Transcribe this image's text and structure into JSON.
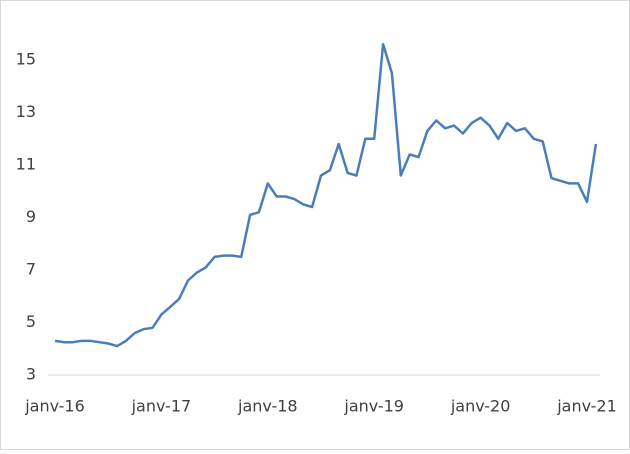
{
  "chart_data": {
    "type": "line",
    "x": [
      "2016-01",
      "2016-02",
      "2016-03",
      "2016-04",
      "2016-05",
      "2016-06",
      "2016-07",
      "2016-08",
      "2016-09",
      "2016-10",
      "2016-11",
      "2016-12",
      "2017-01",
      "2017-02",
      "2017-03",
      "2017-04",
      "2017-05",
      "2017-06",
      "2017-07",
      "2017-08",
      "2017-09",
      "2017-10",
      "2017-11",
      "2017-12",
      "2018-01",
      "2018-02",
      "2018-03",
      "2018-04",
      "2018-05",
      "2018-06",
      "2018-07",
      "2018-08",
      "2018-09",
      "2018-10",
      "2018-11",
      "2018-12",
      "2019-01",
      "2019-02",
      "2019-03",
      "2019-04",
      "2019-05",
      "2019-06",
      "2019-07",
      "2019-08",
      "2019-09",
      "2019-10",
      "2019-11",
      "2019-12",
      "2020-01",
      "2020-02",
      "2020-03",
      "2020-04",
      "2020-05",
      "2020-06",
      "2020-07",
      "2020-08",
      "2020-09",
      "2020-10",
      "2020-11",
      "2020-12",
      "2021-01",
      "2021-02"
    ],
    "series": [
      {
        "color": "#4a7ebb",
        "values": [
          4.3,
          4.25,
          4.25,
          4.3,
          4.3,
          4.25,
          4.2,
          4.1,
          4.3,
          4.6,
          4.75,
          4.8,
          5.3,
          5.6,
          5.9,
          6.6,
          6.9,
          7.1,
          7.5,
          7.55,
          7.55,
          7.5,
          9.1,
          9.2,
          10.3,
          9.8,
          9.8,
          9.7,
          9.5,
          9.4,
          10.6,
          10.8,
          11.8,
          10.7,
          10.6,
          12.0,
          12.0,
          15.6,
          14.5,
          10.6,
          11.4,
          11.3,
          12.3,
          12.7,
          12.4,
          12.5,
          12.2,
          12.6,
          12.8,
          12.5,
          12.0,
          12.6,
          12.3,
          12.4,
          12.0,
          11.9,
          10.5,
          10.4,
          10.3,
          10.3,
          9.6,
          11.8
        ]
      }
    ],
    "ylim": [
      3,
      16
    ],
    "yticks": [
      3,
      5,
      7,
      9,
      11,
      13,
      15
    ],
    "xticks": [
      {
        "value": "2016-01",
        "label": "janv-16"
      },
      {
        "value": "2017-01",
        "label": "janv-17"
      },
      {
        "value": "2018-01",
        "label": "janv-18"
      },
      {
        "value": "2019-01",
        "label": "janv-19"
      },
      {
        "value": "2020-01",
        "label": "janv-20"
      },
      {
        "value": "2021-01",
        "label": "janv-21"
      }
    ]
  }
}
